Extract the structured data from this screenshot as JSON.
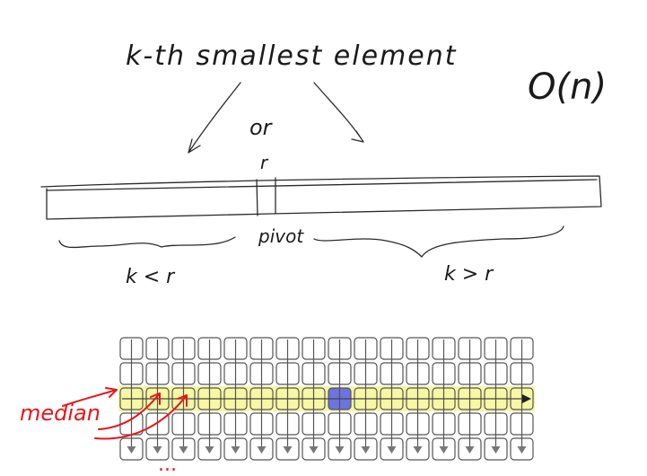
{
  "title": "k-th smallest element",
  "complexity": "O(n)",
  "or_label": "or",
  "pivot_mark": "r",
  "pivot_label": "pivot",
  "left_case": "k < r",
  "right_case": "k > r",
  "median_label": "median",
  "ellipsis": "...",
  "grid": {
    "columns": 16,
    "rows": 5,
    "median_row": 2,
    "highlight_col": 8,
    "colors": {
      "median_row": "#f7f7a4",
      "highlight": "#6b74e0",
      "cell_border": "#555555",
      "cell_fill": "#ffffff"
    }
  }
}
